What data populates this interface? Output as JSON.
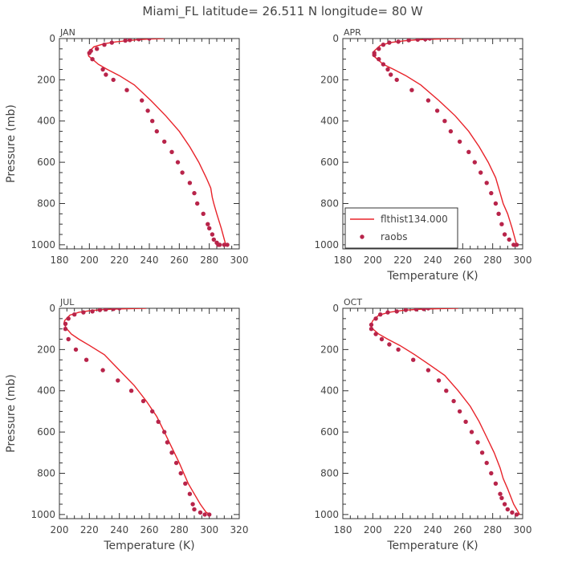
{
  "figure_title": "Miami_FL   latitude= 26.511 N longitude= 80 W",
  "colors": {
    "model_line": "#e8232a",
    "raobs_marker": "#b8244a",
    "text": "#444444",
    "axis": "#333333"
  },
  "chart_data": [
    {
      "type": "line",
      "panel_label": "JAN",
      "xlabel": "",
      "ylabel": "Pressure (mb)",
      "xlim": [
        180,
        300
      ],
      "xticks": [
        180,
        200,
        220,
        240,
        260,
        280,
        300
      ],
      "ylim": [
        0,
        1020
      ],
      "y_inverted": true,
      "yticks": [
        0,
        200,
        400,
        600,
        800,
        1000
      ],
      "series": [
        {
          "name": "",
          "kind": "line",
          "x": [
            250,
            241,
            233,
            226,
            218,
            210,
            203,
            199,
            199.5,
            202,
            206,
            212,
            220,
            230,
            241,
            251,
            260,
            267,
            273,
            278,
            281,
            282,
            283,
            285,
            288,
            291
          ],
          "y": [
            0,
            2,
            5,
            10,
            16,
            25,
            40,
            70,
            85,
            100,
            125,
            150,
            180,
            225,
            300,
            375,
            450,
            525,
            600,
            675,
            725,
            770,
            800,
            850,
            920,
            1000
          ]
        },
        {
          "name": "",
          "kind": "markers",
          "x": [
            240,
            233,
            227,
            224,
            215,
            210,
            205,
            201,
            200,
            202,
            209,
            211,
            216,
            225,
            235,
            239,
            242,
            245,
            250,
            255,
            259,
            262,
            267,
            270,
            272,
            276,
            279,
            280,
            282,
            283,
            285,
            286,
            287,
            290,
            292
          ],
          "y": [
            0,
            3,
            7,
            10,
            20,
            30,
            50,
            60,
            70,
            100,
            150,
            175,
            200,
            250,
            300,
            350,
            400,
            450,
            500,
            550,
            600,
            650,
            700,
            750,
            800,
            850,
            900,
            920,
            950,
            975,
            990,
            1000,
            1000,
            1000,
            1000
          ]
        }
      ]
    },
    {
      "type": "line",
      "panel_label": "APR",
      "xlabel": "Temperature (K)",
      "ylabel": "",
      "xlim": [
        180,
        300
      ],
      "xticks": [
        180,
        200,
        220,
        240,
        260,
        280,
        300
      ],
      "ylim": [
        0,
        1020
      ],
      "y_inverted": true,
      "yticks": [
        0,
        200,
        400,
        600,
        800,
        1000
      ],
      "series": [
        {
          "name": "flthist134.000",
          "kind": "line",
          "x": [
            259,
            250,
            240,
            230,
            221,
            212,
            205,
            201,
            200,
            203,
            207,
            214,
            222,
            232,
            244,
            255,
            264,
            271,
            277,
            282,
            285,
            287,
            290,
            293,
            296
          ],
          "y": [
            0,
            1,
            3,
            6,
            11,
            19,
            33,
            60,
            80,
            100,
            125,
            150,
            180,
            225,
            300,
            375,
            450,
            525,
            600,
            675,
            750,
            800,
            850,
            920,
            1000
          ]
        },
        {
          "name": "raobs",
          "kind": "markers",
          "x": [
            238,
            235,
            230,
            224,
            217,
            211,
            207,
            204,
            201,
            201,
            204,
            207,
            210,
            212,
            216,
            226,
            237,
            243,
            248,
            252,
            258,
            264,
            268,
            272,
            276,
            279,
            282,
            284,
            286,
            288,
            291,
            294,
            296
          ],
          "y": [
            0,
            3,
            5,
            8,
            15,
            20,
            30,
            50,
            70,
            80,
            100,
            125,
            150,
            175,
            200,
            250,
            300,
            350,
            400,
            450,
            500,
            550,
            600,
            650,
            700,
            750,
            800,
            850,
            900,
            950,
            975,
            1000,
            1000
          ]
        }
      ]
    },
    {
      "type": "line",
      "panel_label": "JUL",
      "xlabel": "Temperature (K)",
      "ylabel": "Pressure (mb)",
      "xlim": [
        200,
        320
      ],
      "xticks": [
        200,
        220,
        240,
        260,
        280,
        300,
        320
      ],
      "ylim": [
        0,
        1020
      ],
      "y_inverted": true,
      "yticks": [
        0,
        200,
        400,
        600,
        800,
        1000
      ],
      "series": [
        {
          "name": "",
          "kind": "line",
          "x": [
            258,
            250,
            240,
            230,
            221,
            213,
            207,
            203.5,
            203,
            205,
            208,
            213,
            220,
            230,
            240,
            250,
            258,
            265,
            270,
            275,
            280,
            283,
            286,
            290,
            294,
            298,
            301
          ],
          "y": [
            0,
            1,
            3,
            6,
            11,
            19,
            33,
            60,
            75,
            100,
            125,
            150,
            180,
            225,
            300,
            375,
            450,
            525,
            600,
            675,
            750,
            800,
            850,
            900,
            950,
            990,
            1000
          ]
        },
        {
          "name": "",
          "kind": "markers",
          "x": [
            240,
            236,
            231,
            227,
            222,
            216,
            210,
            206,
            204,
            204,
            206,
            211,
            218,
            229,
            239,
            248,
            256,
            262,
            266,
            270,
            272,
            275,
            278,
            281,
            284,
            287,
            289,
            290,
            294,
            297,
            300
          ],
          "y": [
            0,
            3,
            5,
            8,
            15,
            20,
            30,
            50,
            75,
            100,
            150,
            200,
            250,
            300,
            350,
            400,
            450,
            500,
            550,
            600,
            650,
            700,
            750,
            800,
            850,
            900,
            950,
            975,
            990,
            1000,
            1000
          ]
        }
      ]
    },
    {
      "type": "line",
      "panel_label": "OCT",
      "xlabel": "Temperature (K)",
      "ylabel": "",
      "xlim": [
        180,
        300
      ],
      "xticks": [
        180,
        200,
        220,
        240,
        260,
        280,
        300
      ],
      "ylim": [
        0,
        1020
      ],
      "y_inverted": true,
      "yticks": [
        0,
        200,
        400,
        600,
        800,
        1000
      ],
      "series": [
        {
          "name": "",
          "kind": "line",
          "x": [
            257,
            248,
            238,
            228,
            219,
            211,
            204,
            200,
            198.5,
            200,
            204,
            210,
            218,
            228,
            238,
            248,
            257,
            265,
            271,
            276,
            281,
            285,
            287,
            290,
            294,
            298
          ],
          "y": [
            0,
            1,
            3,
            6,
            11,
            19,
            33,
            60,
            85,
            100,
            125,
            150,
            180,
            225,
            275,
            325,
            400,
            475,
            550,
            625,
            700,
            775,
            825,
            875,
            950,
            1000
          ]
        },
        {
          "name": "",
          "kind": "markers",
          "x": [
            237,
            234,
            229,
            222,
            216,
            210,
            205,
            202,
            199,
            199,
            202,
            206,
            211,
            217,
            227,
            237,
            244,
            249,
            254,
            258,
            262,
            266,
            270,
            273,
            276,
            279,
            282,
            285,
            286,
            288,
            290,
            293,
            296
          ],
          "y": [
            0,
            3,
            5,
            8,
            15,
            20,
            30,
            50,
            80,
            100,
            125,
            150,
            175,
            200,
            250,
            300,
            350,
            400,
            450,
            500,
            550,
            600,
            650,
            700,
            750,
            800,
            850,
            900,
            920,
            950,
            975,
            990,
            1000
          ]
        }
      ]
    }
  ]
}
